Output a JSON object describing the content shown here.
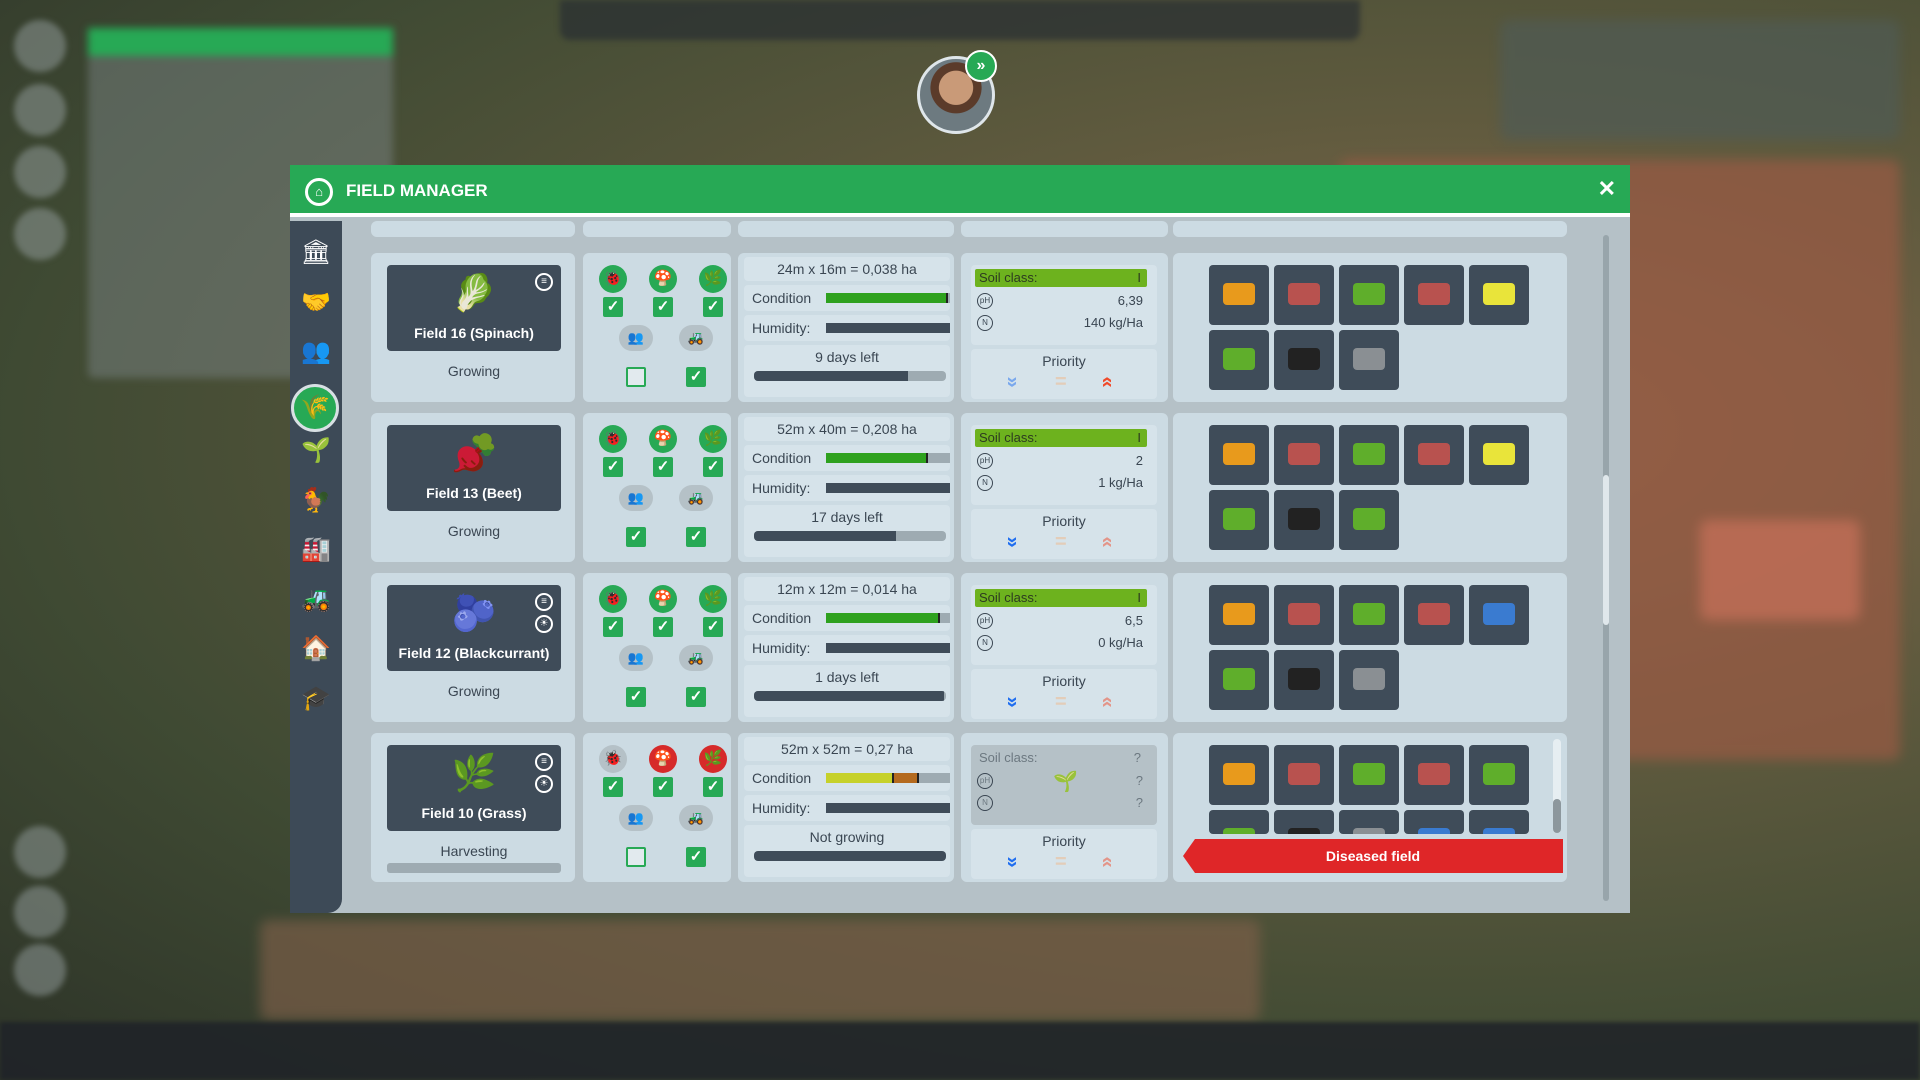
{
  "dialog": {
    "title": "FIELD MANAGER",
    "close_label": "✕",
    "home_icon": "home-icon"
  },
  "sidebar": {
    "items": [
      {
        "name": "bank",
        "glyph": "🏛",
        "active": false
      },
      {
        "name": "contracts",
        "glyph": "🤝",
        "active": false
      },
      {
        "name": "workers",
        "glyph": "👥",
        "active": false
      },
      {
        "name": "fields",
        "glyph": "🌾",
        "active": true
      },
      {
        "name": "greenhouse",
        "glyph": "🌱",
        "active": false
      },
      {
        "name": "animals",
        "glyph": "🐓",
        "active": false
      },
      {
        "name": "factory",
        "glyph": "🏭",
        "active": false
      },
      {
        "name": "vehicles",
        "glyph": "🚜",
        "active": false
      },
      {
        "name": "buildings",
        "glyph": "🏠",
        "active": false
      },
      {
        "name": "education",
        "glyph": "🎓",
        "active": false
      }
    ]
  },
  "labels": {
    "condition": "Condition",
    "humidity": "Humidity:",
    "soil_class": "Soil class:",
    "priority": "Priority"
  },
  "colors": {
    "accent": "#27a955",
    "danger": "#df2628",
    "soil_good": "#6db21e",
    "priority_low": "#1f6ef0",
    "priority_mid": "#f0b88a",
    "priority_high": "#f04a2a"
  },
  "fields": [
    {
      "name": "Field 16 (Spinach)",
      "plant": "🥬",
      "status": "Growing",
      "right_icons": [
        "rotation-icon"
      ],
      "protections": [
        {
          "icon": "pest-icon",
          "state": "ok"
        },
        {
          "icon": "fungus-icon",
          "state": "ok"
        },
        {
          "icon": "weed-icon",
          "state": "ok"
        }
      ],
      "protection_checks": [
        true,
        true,
        true
      ],
      "assign_checks": [
        false,
        true
      ],
      "size": "24m x 16m = 0,038 ha",
      "condition": 0.98,
      "condition_warn": null,
      "humidity": 1.0,
      "time": "9 days left",
      "progress": 0.8,
      "soil": {
        "class": "I",
        "ph": "6,39",
        "n": "140 kg/Ha",
        "known": true
      },
      "priority": "high",
      "equipment": [
        "tractor-orange",
        "plough-red",
        "cultivator-green",
        "trailer-red",
        "planter-yellow",
        "sprayer-green",
        "baler-black",
        "trailer-grey"
      ],
      "alert": null,
      "harvest_progress": null
    },
    {
      "name": "Field 13 (Beet)",
      "plant": "🫜",
      "status": "Growing",
      "right_icons": [],
      "protections": [
        {
          "icon": "pest-icon",
          "state": "ok"
        },
        {
          "icon": "fungus-icon",
          "state": "ok"
        },
        {
          "icon": "weed-icon",
          "state": "ok"
        }
      ],
      "protection_checks": [
        true,
        true,
        true
      ],
      "assign_checks": [
        true,
        true
      ],
      "size": "52m x 40m = 0,208 ha",
      "condition": 0.82,
      "condition_warn": null,
      "humidity": 1.0,
      "time": "17 days left",
      "progress": 0.74,
      "soil": {
        "class": "I",
        "ph": "2",
        "n": "1 kg/Ha",
        "known": true
      },
      "priority": "low",
      "equipment": [
        "tractor-orange",
        "plough-red",
        "cultivator-green",
        "trailer-red",
        "planter-yellow",
        "sprayer-green",
        "baler-black",
        "harvester-green"
      ],
      "alert": null,
      "harvest_progress": null
    },
    {
      "name": "Field 12 (Blackcurrant)",
      "plant": "🫐",
      "status": "Growing",
      "right_icons": [
        "rotation-icon",
        "sun-icon"
      ],
      "protections": [
        {
          "icon": "pest-icon",
          "state": "ok"
        },
        {
          "icon": "fungus-icon",
          "state": "ok"
        },
        {
          "icon": "weed-icon",
          "state": "ok"
        }
      ],
      "protection_checks": [
        true,
        true,
        true
      ],
      "assign_checks": [
        true,
        true
      ],
      "size": "12m x 12m = 0,014 ha",
      "condition": 0.92,
      "condition_warn": null,
      "humidity": 1.0,
      "time": "1 days left",
      "progress": 0.99,
      "soil": {
        "class": "I",
        "ph": "6,5",
        "n": "0 kg/Ha",
        "known": true
      },
      "priority": "low",
      "equipment": [
        "tractor-orange",
        "plough-red",
        "cultivator-green",
        "trailer-red",
        "seeder-blue",
        "sprayer-green",
        "baler-black",
        "trailer-grey"
      ],
      "alert": null,
      "harvest_progress": null
    },
    {
      "name": "Field 10 (Grass)",
      "plant": "🌿",
      "status": "Harvesting",
      "right_icons": [
        "rotation-icon",
        "sun-icon"
      ],
      "protections": [
        {
          "icon": "pest-icon",
          "state": "none"
        },
        {
          "icon": "fungus-icon",
          "state": "bad"
        },
        {
          "icon": "weed-icon",
          "state": "bad"
        }
      ],
      "protection_checks": [
        true,
        true,
        true
      ],
      "assign_checks": [
        false,
        true
      ],
      "size": "52m x 52m = 0,27 ha",
      "condition": 0.55,
      "condition_warn": 0.75,
      "humidity": 1.0,
      "time": "Not growing",
      "progress": 1.0,
      "soil": {
        "class": "?",
        "ph": "?",
        "n": "?",
        "known": false
      },
      "priority": "low",
      "equipment": [
        "tractor-orange",
        "plough-red",
        "cultivator-green",
        "trailer-red",
        "seeder-green",
        "sprayer-green",
        "baler-black",
        "harvester-grey",
        "rake-blue",
        "trailer-blue"
      ],
      "alert": "Diseased field",
      "harvest_progress": 0
    }
  ]
}
